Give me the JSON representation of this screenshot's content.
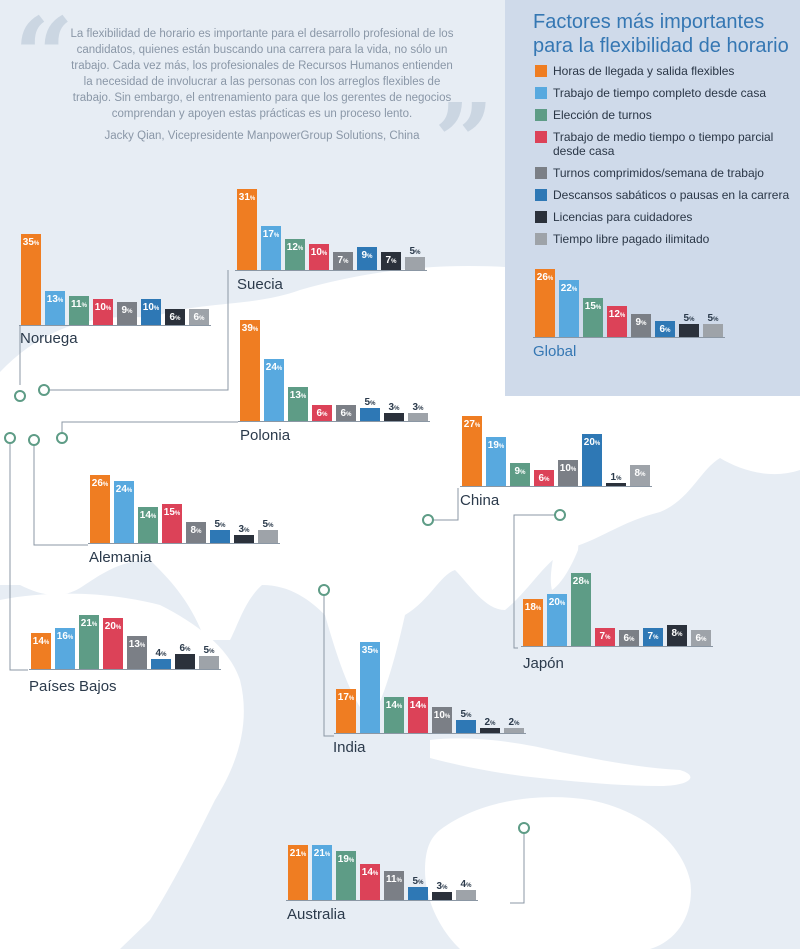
{
  "quote": {
    "text": "La flexibilidad de horario es importante para el desarrollo profesional de los candidatos, quienes están buscando una carrera para la vida, no sólo un trabajo. Cada vez más, los profesionales de Recursos Humanos entienden la necesidad de involucrar a las personas con los arreglos flexibles de trabajo. Sin embargo, el entrenamiento para que los gerentes de negocios comprendan y apoyen estas prácticas es un proceso lento.",
    "author": "Jacky Qian, Vicepresidente ManpowerGroup Solutions, China",
    "open_mark": "“",
    "close_mark": "”"
  },
  "legend": {
    "title": "Factores más importantes para la flexibilidad de horario"
  },
  "percent_suffix": "%",
  "chart_data": {
    "type": "bar",
    "categories": [
      "Horas de llegada y salida flexibles",
      "Trabajo de tiempo completo desde casa",
      "Elección de turnos",
      "Trabajo de medio tiempo o tiempo parcial desde casa",
      "Turnos comprimidos/semana de trabajo",
      "Descansos sabáticos o pausas en la carrera",
      "Licencias para cuidadores",
      "Tiempo libre pagado ilimitado"
    ],
    "colors": [
      "#ef7d22",
      "#58a9df",
      "#5e9c86",
      "#dc4258",
      "#7b7f86",
      "#2e78b5",
      "#2b313b",
      "#9ea3a9"
    ],
    "series": [
      {
        "name": "Global",
        "values": [
          26,
          22,
          15,
          12,
          9,
          6,
          5,
          5
        ]
      },
      {
        "name": "Noruega",
        "values": [
          35,
          13,
          11,
          10,
          9,
          10,
          6,
          6
        ]
      },
      {
        "name": "Suecia",
        "values": [
          31,
          17,
          12,
          10,
          7,
          9,
          7,
          5
        ]
      },
      {
        "name": "Polonia",
        "values": [
          39,
          24,
          13,
          6,
          6,
          5,
          3,
          3
        ]
      },
      {
        "name": "Alemania",
        "values": [
          26,
          24,
          14,
          15,
          8,
          5,
          3,
          5
        ]
      },
      {
        "name": "China",
        "values": [
          27,
          19,
          9,
          6,
          10,
          20,
          1,
          8
        ]
      },
      {
        "name": "Japón",
        "values": [
          18,
          20,
          28,
          7,
          6,
          7,
          8,
          6
        ]
      },
      {
        "name": "Países Bajos",
        "values": [
          14,
          16,
          21,
          20,
          13,
          4,
          6,
          5
        ]
      },
      {
        "name": "India",
        "values": [
          17,
          35,
          14,
          14,
          10,
          5,
          2,
          2
        ]
      },
      {
        "name": "Australia",
        "values": [
          21,
          21,
          19,
          14,
          11,
          5,
          3,
          4
        ]
      }
    ]
  }
}
